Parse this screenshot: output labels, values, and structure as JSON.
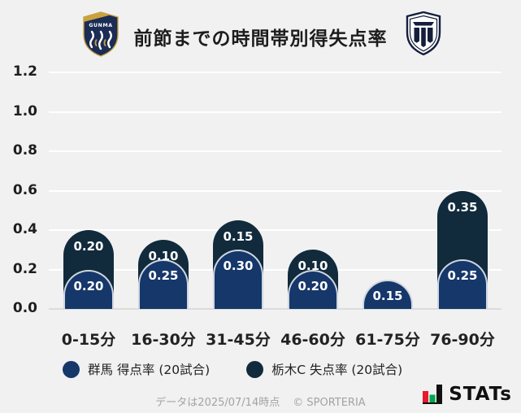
{
  "header": {
    "title": "前節までの時間帯別得失点率",
    "left_team": "群馬",
    "right_team": "栃木C"
  },
  "chart_data": {
    "type": "bar",
    "style": "rounded-pill-overlap-stacked",
    "title": "前節までの時間帯別得失点率",
    "categories": [
      "0-15分",
      "16-30分",
      "31-45分",
      "46-60分",
      "61-75分",
      "76-90分"
    ],
    "series": [
      {
        "name": "群馬 得点率 (20試合)",
        "role": "front",
        "color": "#15376a",
        "values": [
          0.2,
          0.25,
          0.3,
          0.2,
          0.15,
          0.25
        ]
      },
      {
        "name": "栃木C 失点率 (20試合)",
        "role": "back-stacked",
        "color": "#112b3c",
        "values": [
          0.2,
          0.1,
          0.15,
          0.1,
          0.0,
          0.35
        ]
      }
    ],
    "ylim": [
      0,
      1.2
    ],
    "yticks": [
      "0.0",
      "0.2",
      "0.4",
      "0.6",
      "0.8",
      "1.0",
      "1.2"
    ],
    "grid": true,
    "legend_position": "bottom",
    "value_labels": "two-decimals-on-bars"
  },
  "footer": {
    "note": "データは2025/07/14時点",
    "copyright": "© SPORTERIA",
    "brand": "STATs"
  },
  "colors": {
    "background": "#f1f1f2",
    "gridline": "#ffffff",
    "baseline": "#dcdcdc",
    "front_bar": "#15376a",
    "back_bar": "#112b3c",
    "bar_outline": "rgba(255,255,255,0.8)",
    "stats_red": "#e8192c",
    "stats_green": "#00a650"
  }
}
